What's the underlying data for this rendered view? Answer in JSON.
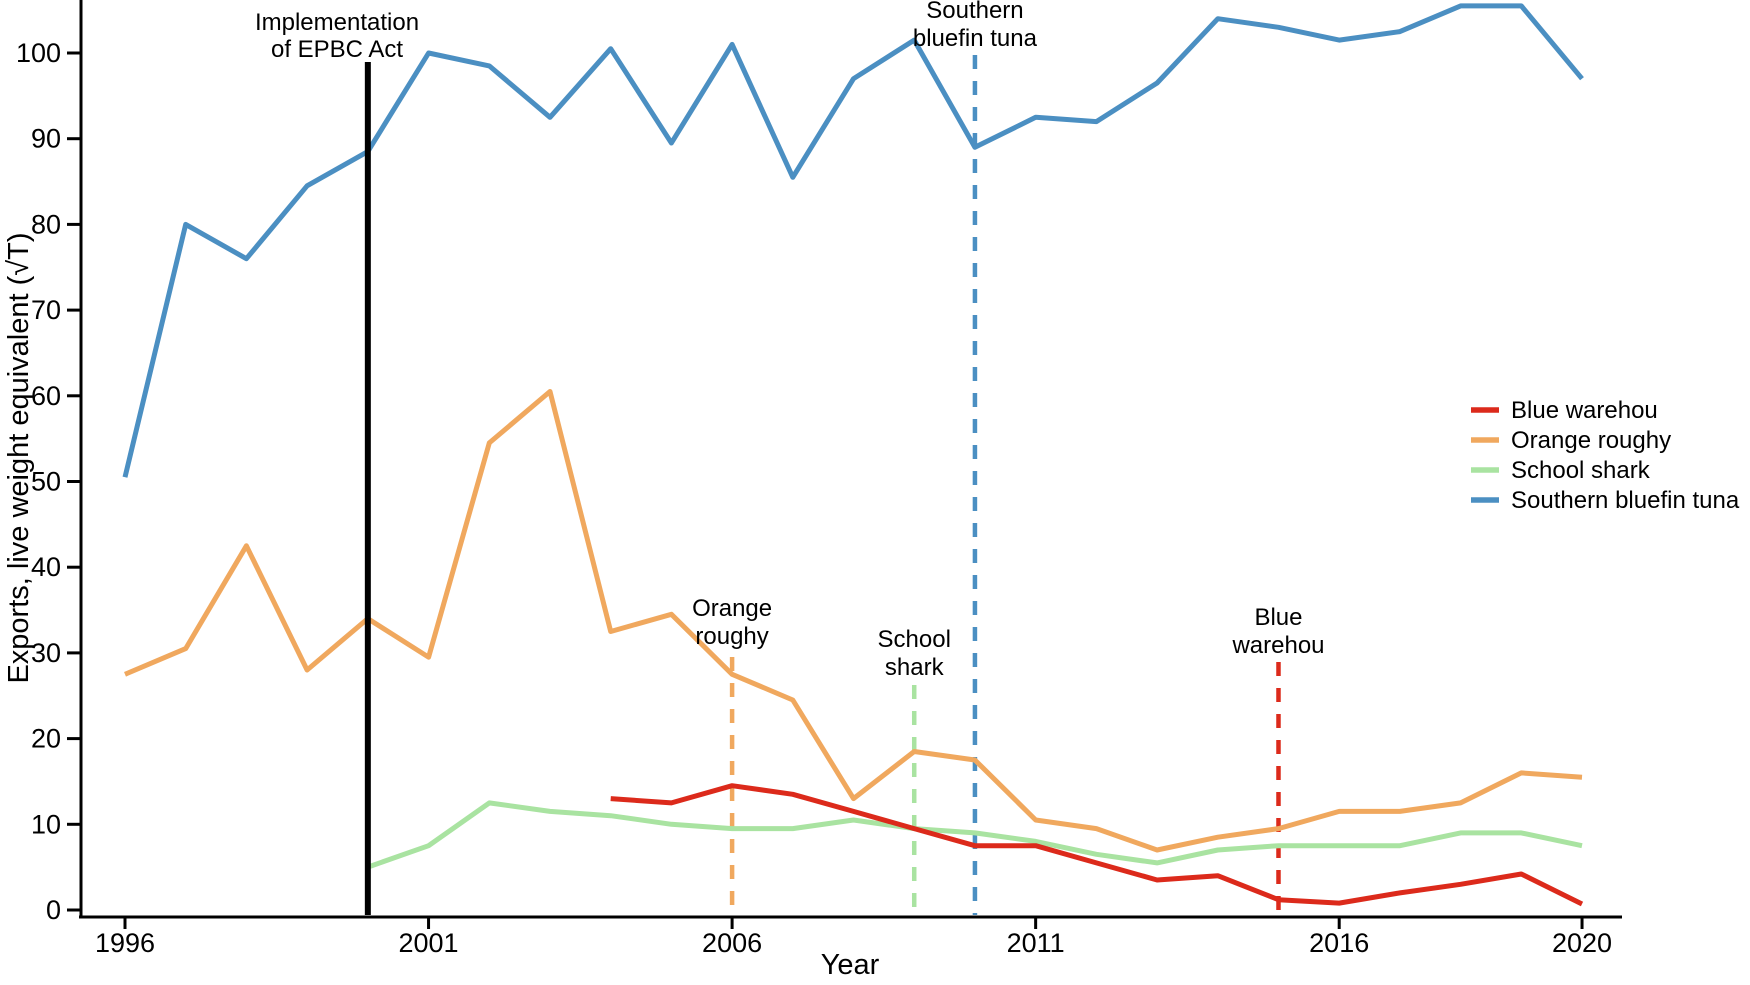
{
  "chart_data": {
    "type": "line",
    "title": "",
    "xlabel": "Year",
    "ylabel": "Exports, live weight equivalent (√T)",
    "x_ticks": [
      1996,
      2001,
      2006,
      2011,
      2016,
      2020
    ],
    "y_ticks": [
      0,
      10,
      20,
      30,
      40,
      50,
      60,
      70,
      80,
      90,
      100
    ],
    "xlim": [
      1995.2,
      2020.7
    ],
    "ylim": [
      0,
      106
    ],
    "grid": false,
    "legend_position": "right",
    "series": [
      {
        "name": "Blue warehou",
        "color": "#dc2a1b",
        "points": [
          [
            2004,
            13
          ],
          [
            2005,
            12.5
          ],
          [
            2006,
            14.5
          ],
          [
            2007,
            13.5
          ],
          [
            2008,
            11.5
          ],
          [
            2009,
            9.5
          ],
          [
            2010,
            7.5
          ],
          [
            2011,
            7.5
          ],
          [
            2012,
            5.5
          ],
          [
            2013,
            3.5
          ],
          [
            2014,
            4
          ],
          [
            2015,
            1.2
          ],
          [
            2016,
            0.8
          ],
          [
            2017,
            2
          ],
          [
            2018,
            3
          ],
          [
            2019,
            4.2
          ],
          [
            2020,
            0.7
          ]
        ]
      },
      {
        "name": "Orange roughy",
        "color": "#f0a85e",
        "points": [
          [
            1996,
            27.5
          ],
          [
            1997,
            30.5
          ],
          [
            1998,
            42.5
          ],
          [
            1999,
            28
          ],
          [
            2000,
            34
          ],
          [
            2001,
            29.5
          ],
          [
            2002,
            54.5
          ],
          [
            2003,
            60.5
          ],
          [
            2004,
            32.5
          ],
          [
            2005,
            34.5
          ],
          [
            2006,
            27.5
          ],
          [
            2007,
            24.5
          ],
          [
            2008,
            13
          ],
          [
            2009,
            18.5
          ],
          [
            2010,
            17.5
          ],
          [
            2011,
            10.5
          ],
          [
            2012,
            9.5
          ],
          [
            2013,
            7
          ],
          [
            2014,
            8.5
          ],
          [
            2015,
            9.5
          ],
          [
            2016,
            11.5
          ],
          [
            2017,
            11.5
          ],
          [
            2018,
            12.5
          ],
          [
            2019,
            16
          ],
          [
            2020,
            15.5
          ]
        ]
      },
      {
        "name": "School shark",
        "color": "#a9e3a1",
        "points": [
          [
            2000,
            5
          ],
          [
            2001,
            7.5
          ],
          [
            2002,
            12.5
          ],
          [
            2003,
            11.5
          ],
          [
            2004,
            11
          ],
          [
            2005,
            10
          ],
          [
            2006,
            9.5
          ],
          [
            2007,
            9.5
          ],
          [
            2008,
            10.5
          ],
          [
            2009,
            9.5
          ],
          [
            2010,
            9
          ],
          [
            2011,
            8
          ],
          [
            2012,
            6.5
          ],
          [
            2013,
            5.5
          ],
          [
            2014,
            7
          ],
          [
            2015,
            7.5
          ],
          [
            2016,
            7.5
          ],
          [
            2017,
            7.5
          ],
          [
            2018,
            9
          ],
          [
            2019,
            9
          ],
          [
            2020,
            7.5
          ]
        ]
      },
      {
        "name": "Southern bluefin tuna",
        "color": "#4b8fc2",
        "points": [
          [
            1996,
            50.5
          ],
          [
            1997,
            80
          ],
          [
            1998,
            76
          ],
          [
            1999,
            84.5
          ],
          [
            2000,
            88.5
          ],
          [
            2001,
            100
          ],
          [
            2002,
            98.5
          ],
          [
            2003,
            92.5
          ],
          [
            2004,
            100.5
          ],
          [
            2005,
            89.5
          ],
          [
            2006,
            101
          ],
          [
            2007,
            85.5
          ],
          [
            2008,
            97
          ],
          [
            2009,
            101.5
          ],
          [
            2010,
            89
          ],
          [
            2011,
            92.5
          ],
          [
            2012,
            92
          ],
          [
            2013,
            96.5
          ],
          [
            2014,
            104
          ],
          [
            2015,
            103
          ],
          [
            2016,
            101.5
          ],
          [
            2017,
            102.5
          ],
          [
            2018,
            105.5
          ],
          [
            2019,
            105.5
          ],
          [
            2020,
            97
          ]
        ]
      }
    ],
    "reference_line": {
      "label_line1": "Implementation",
      "label_line2": "of EPBC Act",
      "year": 2000,
      "color": "#000000",
      "style": "solid"
    },
    "event_markers": [
      {
        "id": "orange-roughy",
        "label_line1": "Orange",
        "label_line2": "roughy",
        "year": 2006,
        "color": "#f0a85e"
      },
      {
        "id": "school-shark",
        "label_line1": "School",
        "label_line2": "shark",
        "year": 2009,
        "color": "#a9e3a1"
      },
      {
        "id": "southern-bluefin-tuna",
        "label_line1": "Southern",
        "label_line2": "bluefin tuna",
        "year": 2010,
        "color": "#4b8fc2"
      },
      {
        "id": "blue-warehou",
        "label_line1": "Blue",
        "label_line2": "warehou",
        "year": 2015,
        "color": "#dc2a1b"
      }
    ],
    "legend": [
      "Blue warehou",
      "Orange roughy",
      "School shark",
      "Southern bluefin tuna"
    ]
  }
}
